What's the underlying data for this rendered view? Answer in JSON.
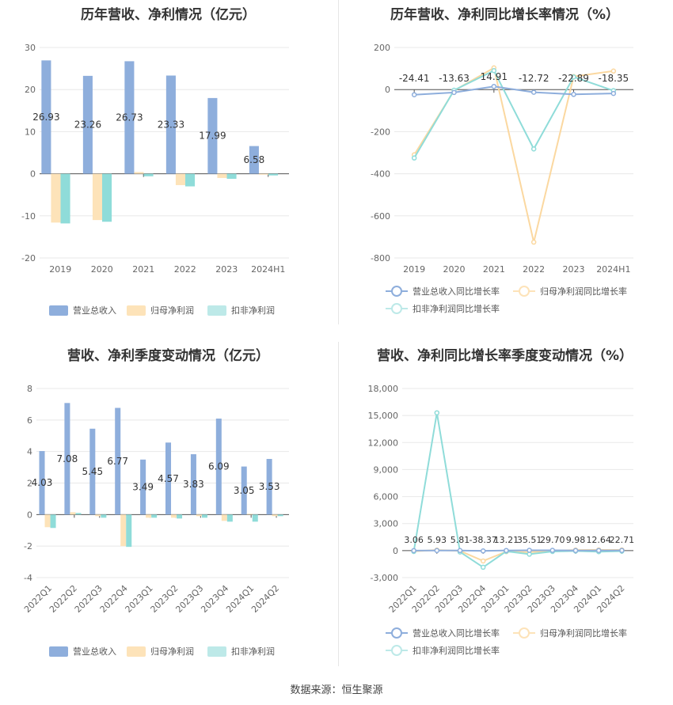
{
  "colors": {
    "revenue": "#8eaedc",
    "net_profit": "#fde3b9",
    "deducted_profit": "#8fdcd9",
    "revenue_line": "#8eaedc",
    "net_profit_line": "#fbd8a0",
    "deducted_profit_line": "#8fdcd9"
  },
  "source_text": "数据来源：恒生聚源",
  "chart_data": [
    {
      "id": "annual_amount",
      "type": "bar",
      "title": "历年营收、净利情况（亿元）",
      "categories": [
        "2019",
        "2020",
        "2021",
        "2022",
        "2023",
        "2024H1"
      ],
      "series": [
        {
          "name": "营业总收入",
          "values": [
            26.93,
            23.26,
            26.73,
            23.33,
            17.99,
            6.58
          ]
        },
        {
          "name": "归母净利润",
          "values": [
            -11.6,
            -11.0,
            0.4,
            -2.7,
            -1.0,
            -0.2
          ]
        },
        {
          "name": "扣非净利润",
          "values": [
            -11.8,
            -11.4,
            -0.6,
            -3.0,
            -1.2,
            -0.4
          ]
        }
      ],
      "data_labels": [
        "26.93",
        "23.26",
        "26.73",
        "23.33",
        "17.99",
        "6.58"
      ],
      "ylim": [
        -20,
        30
      ],
      "yticks": [
        "-20",
        "-10",
        "0",
        "10",
        "20",
        "30"
      ],
      "grid": true,
      "legend": "bottom"
    },
    {
      "id": "annual_growth",
      "type": "line",
      "title": "历年营收、净利同比增长率情况（%）",
      "categories": [
        "2019",
        "2020",
        "2021",
        "2022",
        "2023",
        "2024H1"
      ],
      "series": [
        {
          "name": "营业总收入同比增长率",
          "values": [
            -24.41,
            -13.63,
            14.91,
            -12.72,
            -22.89,
            -18.35
          ]
        },
        {
          "name": "归母净利润同比增长率",
          "values": [
            -310,
            -5,
            103,
            -725,
            62,
            88
          ]
        },
        {
          "name": "扣非净利润同比增长率",
          "values": [
            -325,
            -3,
            90,
            -282,
            60,
            -5
          ]
        }
      ],
      "data_labels": [
        "-24.41",
        "-13.63",
        "14.91",
        "-12.72",
        "-22.89",
        "-18.35"
      ],
      "ylim": [
        -800,
        200
      ],
      "yticks": [
        "-800",
        "-600",
        "-400",
        "-200",
        "0",
        "200"
      ],
      "grid": true,
      "legend": "bottom"
    },
    {
      "id": "quarterly_amount",
      "type": "bar",
      "title": "营收、净利季度变动情况（亿元）",
      "categories": [
        "2022Q1",
        "2022Q2",
        "2022Q3",
        "2022Q4",
        "2023Q1",
        "2023Q2",
        "2023Q3",
        "2023Q4",
        "2024Q1",
        "2024Q2"
      ],
      "series": [
        {
          "name": "营业总收入",
          "values": [
            4.03,
            7.08,
            5.45,
            6.77,
            3.49,
            4.57,
            3.83,
            6.09,
            3.05,
            3.53
          ]
        },
        {
          "name": "归母净利润",
          "values": [
            -0.8,
            0.15,
            -0.1,
            -2.0,
            -0.2,
            -0.2,
            -0.1,
            -0.4,
            0.05,
            -0.1
          ]
        },
        {
          "name": "扣非净利润",
          "values": [
            -0.85,
            0.1,
            -0.2,
            -2.05,
            -0.2,
            -0.25,
            -0.2,
            -0.45,
            -0.45,
            -0.1
          ]
        }
      ],
      "data_labels": [
        "4.03",
        "7.08",
        "5.45",
        "6.77",
        "3.49",
        "4.57",
        "3.83",
        "6.09",
        "3.05",
        "3.53"
      ],
      "ylim": [
        -4,
        8
      ],
      "yticks": [
        "-4",
        "-2",
        "0",
        "2",
        "4",
        "6",
        "8"
      ],
      "grid": true,
      "legend": "bottom"
    },
    {
      "id": "quarterly_growth",
      "type": "line",
      "title": "营收、净利同比增长率季度变动情况（%）",
      "categories": [
        "2022Q1",
        "2022Q2",
        "2022Q3",
        "2022Q4",
        "2023Q1",
        "2023Q2",
        "2023Q3",
        "2023Q4",
        "2024Q1",
        "2024Q2"
      ],
      "series": [
        {
          "name": "营业总收入同比增长率",
          "values": [
            3.06,
            5.93,
            5.81,
            -38.37,
            13.21,
            35.51,
            29.7,
            9.98,
            12.64,
            22.71
          ]
        },
        {
          "name": "归母净利润同比增长率",
          "values": [
            -80,
            60,
            -30,
            -1150,
            -120,
            -180,
            -20,
            60,
            80,
            70
          ]
        },
        {
          "name": "扣非净利润同比增长率",
          "values": [
            -100,
            15300,
            -150,
            -1850,
            -80,
            -400,
            -100,
            -50,
            -120,
            -60
          ]
        }
      ],
      "data_labels": [
        "3.06",
        "5.93",
        "5.81",
        "-38.37",
        "13.21",
        "35.51",
        "29.70",
        "9.98",
        "12.64",
        "22.71"
      ],
      "ylim": [
        -3000,
        18000
      ],
      "yticks": [
        "-3,000",
        "0",
        "3,000",
        "6,000",
        "9,000",
        "12,000",
        "15,000",
        "18,000"
      ],
      "grid": true,
      "legend": "bottom"
    }
  ]
}
